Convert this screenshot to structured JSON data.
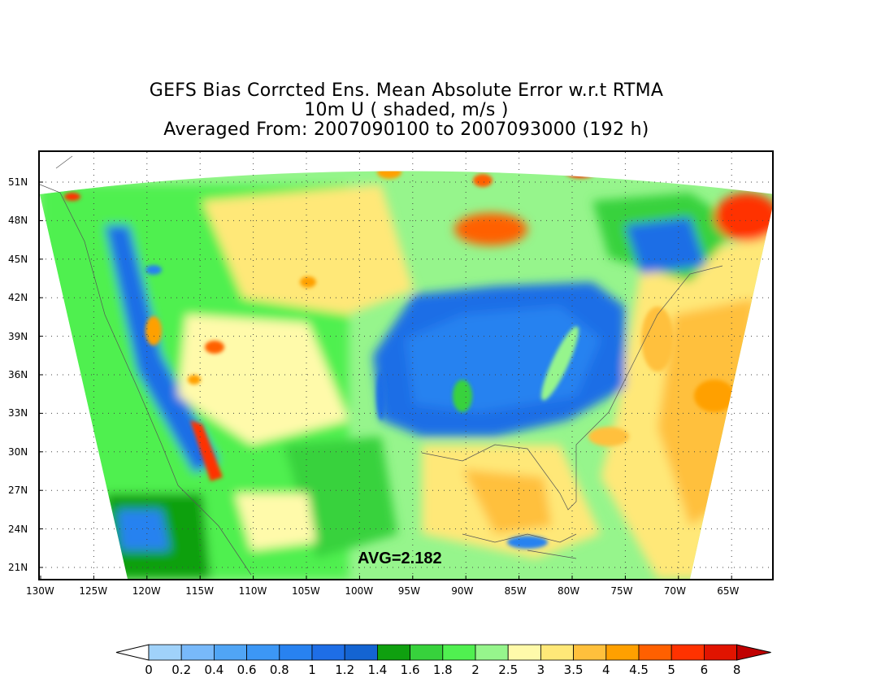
{
  "title": {
    "line1": "GEFS Bias Corrcted Ens. Mean Absolute Error w.r.t RTMA",
    "line2": "10m U ( shaded, m/s )",
    "line3": "Averaged From: 2007090100 to 2007093000 (192 h)"
  },
  "avg_label": "AVG=2.182",
  "lat_labels": [
    "51N",
    "48N",
    "45N",
    "42N",
    "39N",
    "36N",
    "33N",
    "30N",
    "27N",
    "24N",
    "21N"
  ],
  "lon_labels": [
    "130W",
    "125W",
    "120W",
    "115W",
    "110W",
    "105W",
    "100W",
    "95W",
    "90W",
    "85W",
    "80W",
    "75W",
    "70W",
    "65W"
  ],
  "colorbar": {
    "labels": [
      "0",
      "0.2",
      "0.4",
      "0.6",
      "0.8",
      "1",
      "1.2",
      "1.4",
      "1.6",
      "1.8",
      "2",
      "2.5",
      "3",
      "3.5",
      "4",
      "4.5",
      "5",
      "6",
      "8"
    ],
    "colors": [
      "#a0d2fa",
      "#78b9fa",
      "#50a5f5",
      "#3c97f5",
      "#2882f0",
      "#1e6ee6",
      "#1464d2",
      "#0fa00f",
      "#37d23c",
      "#50f050",
      "#96f58c",
      "#fffaaa",
      "#ffe878",
      "#ffc03c",
      "#ffa000",
      "#ff6000",
      "#ff3200",
      "#e11400",
      "#c00000"
    ]
  }
}
